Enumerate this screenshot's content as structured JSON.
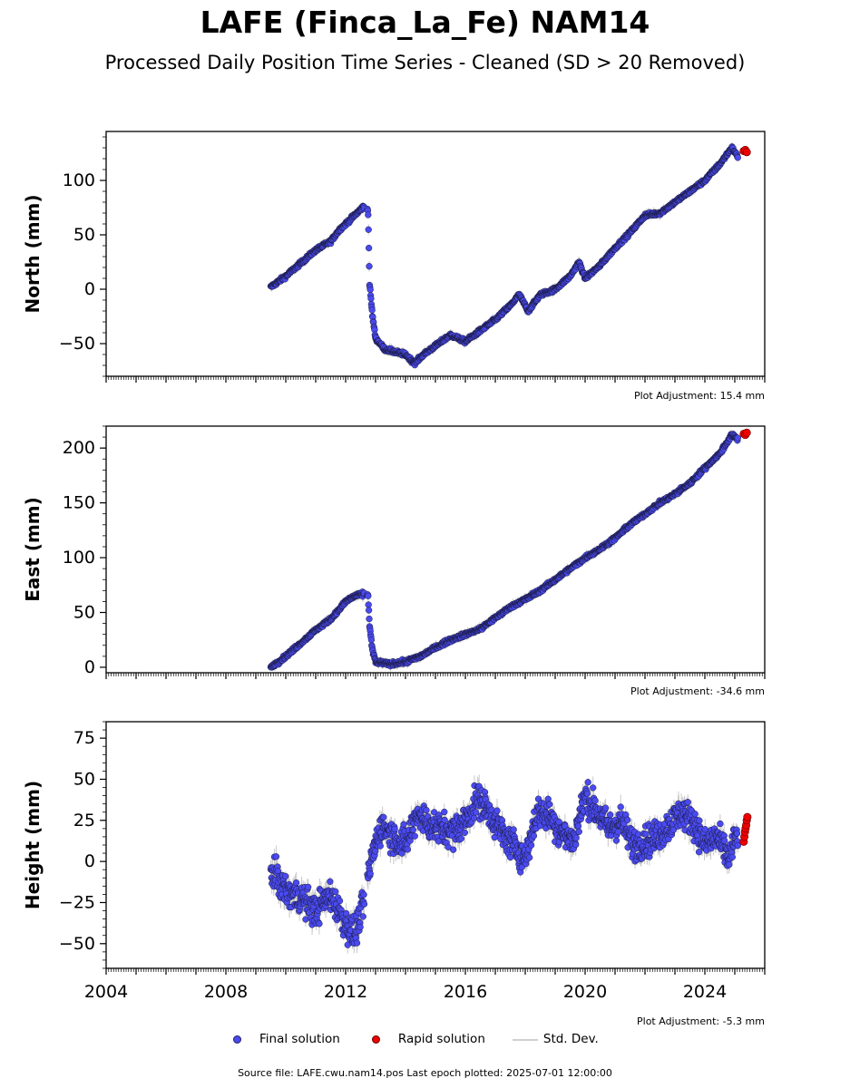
{
  "title": "LAFE (Finca_La_Fe) NAM14",
  "subtitle": "Processed Daily Position Time Series - Cleaned (SD > 20 Removed)",
  "legend": {
    "final": "Final solution",
    "rapid": "Rapid solution",
    "sd": "Std. Dev."
  },
  "source": "Source file: LAFE.cwu.nam14.pos  Last epoch plotted: 2025-07-01 12:00:00",
  "colors": {
    "final": "#4a4af0",
    "rapid": "#ee0000",
    "sd": "#c8c8c8",
    "edge": "#1a1a40"
  },
  "chart_data": [
    {
      "type": "scatter",
      "ylabel": "North (mm)",
      "adjustment": "Plot Adjustment: 15.4 mm",
      "xlim": [
        2004,
        2026
      ],
      "ylim": [
        -80,
        145
      ],
      "yticks": [
        -50,
        0,
        50,
        100
      ],
      "ytick_labels": [
        "−50",
        "0",
        "50",
        "100"
      ],
      "grid": false,
      "series": [
        {
          "name": "Final solution",
          "x": [
            2009.5,
            2010.0,
            2010.5,
            2011.0,
            2011.5,
            2011.8,
            2012.0,
            2012.3,
            2012.6,
            2012.75,
            2012.8,
            2012.9,
            2013.0,
            2013.3,
            2013.7,
            2014.0,
            2014.3,
            2014.6,
            2015.0,
            2015.5,
            2016.0,
            2016.5,
            2017.0,
            2017.5,
            2017.8,
            2018.1,
            2018.5,
            2019.0,
            2019.5,
            2019.8,
            2020.0,
            2020.5,
            2021.0,
            2021.5,
            2022.0,
            2022.5,
            2023.0,
            2023.5,
            2024.0,
            2024.5,
            2024.9,
            2025.1
          ],
          "values": [
            2,
            12,
            24,
            36,
            44,
            55,
            60,
            68,
            76,
            73,
            5,
            -25,
            -45,
            -55,
            -58,
            -60,
            -68,
            -60,
            -52,
            -42,
            -48,
            -38,
            -28,
            -15,
            -5,
            -20,
            -5,
            0,
            12,
            25,
            10,
            22,
            38,
            52,
            68,
            70,
            80,
            90,
            100,
            115,
            130,
            122
          ]
        }
      ],
      "rapid": {
        "name": "Rapid solution",
        "x": [
          2025.3,
          2025.35,
          2025.4
        ],
        "values": [
          127,
          128,
          126
        ]
      }
    },
    {
      "type": "scatter",
      "ylabel": "East (mm)",
      "adjustment": "Plot Adjustment: -34.6 mm",
      "xlim": [
        2004,
        2026
      ],
      "ylim": [
        -5,
        220
      ],
      "yticks": [
        0,
        50,
        100,
        150,
        200
      ],
      "ytick_labels": [
        "0",
        "50",
        "100",
        "150",
        "200"
      ],
      "grid": false,
      "series": [
        {
          "name": "Final solution",
          "x": [
            2009.5,
            2010.0,
            2010.5,
            2011.0,
            2011.5,
            2011.8,
            2012.0,
            2012.3,
            2012.6,
            2012.75,
            2012.8,
            2012.9,
            2013.0,
            2013.5,
            2014.0,
            2014.5,
            2015.0,
            2015.5,
            2016.0,
            2016.5,
            2017.0,
            2017.5,
            2018.0,
            2018.5,
            2019.0,
            2019.5,
            2020.0,
            2020.5,
            2021.0,
            2021.5,
            2022.0,
            2022.5,
            2023.0,
            2023.5,
            2024.0,
            2024.5,
            2024.9,
            2025.1
          ],
          "values": [
            0,
            10,
            22,
            34,
            44,
            53,
            60,
            65,
            67,
            66,
            38,
            15,
            5,
            3,
            5,
            10,
            18,
            25,
            30,
            35,
            45,
            55,
            62,
            70,
            80,
            90,
            100,
            108,
            118,
            130,
            140,
            150,
            158,
            168,
            182,
            195,
            212,
            208
          ]
        }
      ],
      "rapid": {
        "name": "Rapid solution",
        "x": [
          2025.3,
          2025.35,
          2025.4
        ],
        "values": [
          213,
          212,
          214
        ]
      }
    },
    {
      "type": "scatter",
      "ylabel": "Height (mm)",
      "xlabel": "",
      "adjustment": "Plot Adjustment: -5.3 mm",
      "xlim": [
        2004,
        2026
      ],
      "ylim": [
        -65,
        85
      ],
      "yticks": [
        -50,
        -25,
        0,
        25,
        50,
        75
      ],
      "ytick_labels": [
        "−50",
        "−25",
        "0",
        "25",
        "50",
        "75"
      ],
      "xticks": [
        2004,
        2008,
        2012,
        2016,
        2020,
        2024
      ],
      "grid": false,
      "series": [
        {
          "name": "Final solution",
          "x": [
            2009.5,
            2010.0,
            2010.5,
            2011.0,
            2011.5,
            2012.0,
            2012.3,
            2012.6,
            2012.9,
            2013.2,
            2013.6,
            2014.0,
            2014.4,
            2014.8,
            2015.2,
            2015.6,
            2016.0,
            2016.4,
            2016.8,
            2017.2,
            2017.6,
            2018.0,
            2018.4,
            2018.8,
            2019.2,
            2019.6,
            2020.0,
            2020.4,
            2020.8,
            2021.2,
            2021.6,
            2022.0,
            2022.4,
            2022.8,
            2023.2,
            2023.6,
            2024.0,
            2024.4,
            2024.8,
            2025.1
          ],
          "values": [
            -5,
            -18,
            -22,
            -30,
            -20,
            -38,
            -45,
            -25,
            5,
            22,
            15,
            10,
            30,
            22,
            20,
            18,
            25,
            38,
            30,
            18,
            10,
            2,
            30,
            28,
            18,
            12,
            40,
            30,
            20,
            25,
            10,
            12,
            15,
            22,
            30,
            25,
            10,
            15,
            2,
            18
          ]
        }
      ],
      "rapid": {
        "name": "Rapid solution",
        "x": [
          2025.3,
          2025.32,
          2025.34,
          2025.36,
          2025.38,
          2025.4,
          2025.42
        ],
        "values": [
          12,
          15,
          18,
          20,
          22,
          25,
          27
        ]
      }
    }
  ]
}
